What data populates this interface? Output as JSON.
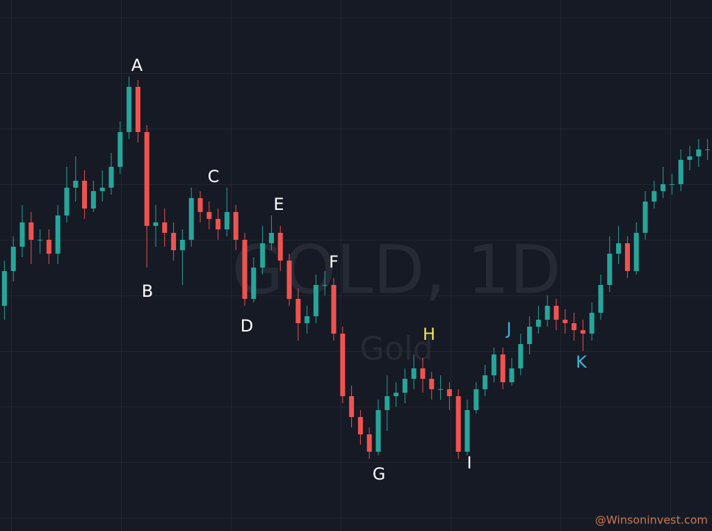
{
  "chart_data": {
    "type": "candlestick",
    "title": "GOLD, 1D",
    "subtitle": "Gold",
    "credit": "@Winsoninvest.com",
    "up_color": "#26a69a",
    "down_color": "#ef5350",
    "ylim": [
      0,
      76.4
    ],
    "open": [
      32.4,
      37.4,
      40.9,
      44.4,
      41.9,
      41.9,
      39.9,
      45.4,
      49.4,
      50.4,
      46.4,
      48.9,
      49.4,
      52.4,
      57.4,
      63.9,
      57.4,
      43.9,
      44.4,
      42.9,
      40.4,
      41.9,
      47.9,
      45.9,
      44.9,
      43.4,
      45.9,
      41.9,
      33.4,
      37.9,
      41.4,
      42.9,
      38.9,
      33.4,
      29.9,
      30.9,
      35.4,
      35.4,
      28.4,
      19.4,
      16.4,
      13.9,
      11.4,
      17.4,
      19.4,
      19.9,
      21.9,
      23.4,
      21.9,
      20.4,
      20.4,
      19.4,
      11.4,
      17.4,
      20.4,
      22.4,
      25.4,
      21.4,
      23.4,
      26.9,
      29.4,
      30.4,
      32.4,
      30.4,
      29.9,
      28.9,
      28.4,
      31.4,
      35.4,
      39.9,
      41.4,
      37.4,
      42.9,
      47.4,
      48.9,
      49.9,
      49.9,
      53.4,
      53.9,
      54.9
    ],
    "high": [
      38.9,
      42.4,
      46.9,
      45.9,
      43.4,
      43.4,
      46.9,
      52.4,
      53.9,
      51.9,
      50.4,
      51.9,
      54.4,
      58.9,
      65.4,
      64.9,
      58.4,
      46.9,
      46.4,
      44.4,
      43.4,
      49.4,
      48.9,
      47.4,
      46.4,
      49.4,
      46.9,
      42.9,
      39.4,
      43.9,
      45.4,
      43.9,
      39.9,
      34.9,
      32.4,
      36.9,
      37.4,
      36.4,
      29.4,
      20.9,
      17.4,
      14.9,
      18.9,
      22.4,
      21.4,
      23.4,
      25.4,
      24.9,
      22.9,
      22.4,
      21.4,
      20.4,
      18.9,
      21.4,
      23.9,
      26.4,
      26.4,
      24.9,
      28.4,
      30.9,
      32.4,
      33.9,
      33.4,
      31.9,
      31.4,
      30.4,
      32.9,
      36.9,
      42.4,
      43.9,
      42.4,
      44.4,
      48.9,
      50.4,
      52.4,
      51.4,
      54.9,
      55.4,
      56.4,
      56.4
    ],
    "low": [
      30.4,
      35.9,
      39.4,
      38.4,
      39.9,
      38.4,
      38.4,
      44.4,
      47.4,
      44.9,
      45.9,
      47.4,
      48.4,
      51.4,
      56.4,
      55.9,
      37.9,
      40.9,
      40.9,
      38.9,
      35.4,
      40.9,
      44.4,
      43.4,
      41.9,
      42.4,
      40.4,
      32.4,
      32.9,
      36.9,
      40.4,
      37.4,
      32.4,
      27.4,
      28.4,
      29.9,
      33.9,
      27.4,
      18.4,
      14.9,
      12.4,
      10.4,
      10.9,
      14.4,
      17.9,
      18.4,
      20.4,
      19.9,
      18.9,
      18.9,
      17.4,
      10.4,
      10.9,
      16.9,
      19.4,
      21.4,
      20.4,
      20.9,
      22.4,
      25.4,
      28.4,
      29.4,
      28.9,
      28.4,
      27.4,
      25.9,
      27.4,
      30.4,
      34.4,
      38.4,
      36.4,
      36.9,
      41.9,
      46.4,
      47.9,
      48.4,
      48.9,
      51.9,
      52.4,
      53.4
    ],
    "close": [
      37.4,
      40.9,
      44.4,
      41.9,
      41.9,
      39.9,
      45.4,
      49.4,
      50.4,
      46.4,
      48.9,
      49.4,
      52.4,
      57.4,
      63.9,
      57.4,
      43.9,
      44.4,
      42.9,
      40.4,
      41.9,
      47.9,
      45.9,
      44.9,
      43.4,
      45.9,
      41.9,
      33.4,
      37.9,
      41.4,
      42.9,
      38.9,
      33.4,
      29.9,
      30.9,
      35.4,
      35.4,
      28.4,
      19.4,
      16.4,
      13.9,
      11.4,
      17.4,
      19.4,
      19.9,
      21.9,
      23.4,
      21.9,
      20.4,
      20.4,
      19.4,
      11.4,
      17.4,
      20.4,
      22.4,
      25.4,
      21.4,
      23.4,
      26.9,
      29.4,
      30.4,
      32.4,
      30.4,
      29.9,
      28.9,
      28.4,
      31.4,
      35.4,
      39.9,
      41.4,
      37.4,
      42.9,
      47.4,
      48.9,
      49.9,
      49.9,
      53.4,
      53.9,
      54.9,
      54.9
    ],
    "annotations": [
      {
        "text": "A",
        "color": "#ffffff"
      },
      {
        "text": "B",
        "color": "#ffffff"
      },
      {
        "text": "C",
        "color": "#ffffff"
      },
      {
        "text": "D",
        "color": "#ffffff"
      },
      {
        "text": "E",
        "color": "#ffffff"
      },
      {
        "text": "F",
        "color": "#ffffff"
      },
      {
        "text": "G",
        "color": "#ffffff"
      },
      {
        "text": "H",
        "color": "#f2e35a"
      },
      {
        "text": "I",
        "color": "#ffffff"
      },
      {
        "text": "J",
        "color": "#3fb6d6"
      },
      {
        "text": "K",
        "color": "#3fb6d6"
      }
    ]
  }
}
